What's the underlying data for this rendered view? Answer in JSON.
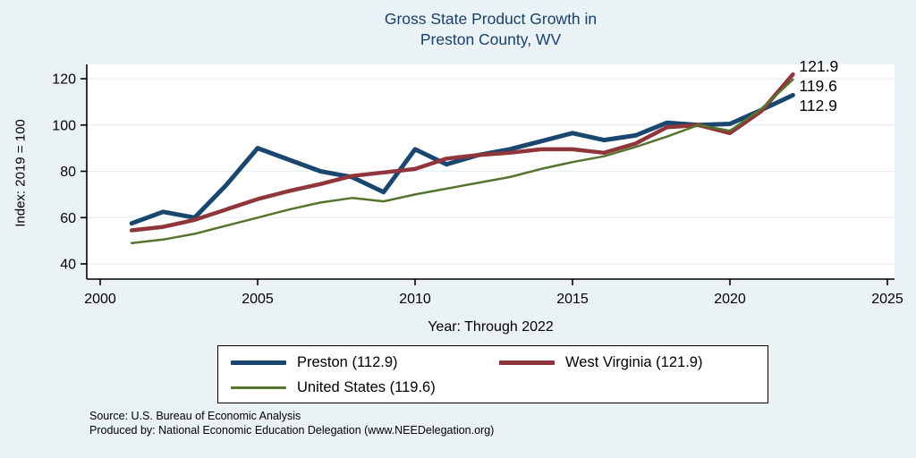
{
  "title": {
    "line1": "Gross State Product Growth in",
    "line2": "Preston County, WV"
  },
  "axes": {
    "y_label": "Index: 2019 = 100",
    "x_label": "Year: Through 2022"
  },
  "chart_data": {
    "type": "line",
    "x": [
      2001,
      2002,
      2003,
      2004,
      2005,
      2006,
      2007,
      2008,
      2009,
      2010,
      2011,
      2012,
      2013,
      2014,
      2015,
      2016,
      2017,
      2018,
      2019,
      2020,
      2021,
      2022
    ],
    "series": [
      {
        "name": "Preston",
        "color": "#1a476f",
        "width": 5,
        "values": [
          57.5,
          62.5,
          60,
          74,
          90,
          85,
          80,
          77.5,
          71,
          89.5,
          83,
          87,
          89.5,
          93,
          96.5,
          93.5,
          95.5,
          101,
          100,
          100.5,
          106.5,
          112.9
        ],
        "end_label": "112.9"
      },
      {
        "name": "West Virginia",
        "color": "#90353b",
        "width": 4.5,
        "values": [
          54.5,
          56,
          59,
          63.5,
          68,
          71.5,
          74.5,
          78,
          79.5,
          81,
          85.5,
          87,
          88,
          89.5,
          89.5,
          88,
          92,
          99,
          100,
          96.5,
          106,
          121.9
        ],
        "end_label": "121.9"
      },
      {
        "name": "United States",
        "color": "#55752f",
        "width": 2.5,
        "values": [
          49,
          50.5,
          53,
          56.5,
          60,
          63.5,
          66.5,
          68.5,
          67,
          70,
          72.5,
          75,
          77.5,
          81,
          84,
          86.5,
          90.5,
          95,
          100,
          97.5,
          107,
          119.6
        ],
        "end_label": "119.6"
      }
    ],
    "xlim": [
      2000,
      2025
    ],
    "x_ticks": [
      2000,
      2005,
      2010,
      2015,
      2020,
      2025
    ],
    "y_ticks": [
      40,
      60,
      80,
      100,
      120
    ],
    "grid": "faint-horizontal",
    "legend_position": "bottom",
    "title": "Gross State Product Growth in Preston County, WV",
    "xlabel": "Year: Through 2022",
    "ylabel": "Index: 2019 = 100"
  },
  "legend": {
    "items": [
      {
        "label": "Preston  (112.9)"
      },
      {
        "label": "West Virginia (121.9)"
      },
      {
        "label": "United States (119.6)"
      }
    ]
  },
  "footnotes": {
    "source": "Source: U.S. Bureau of Economic Analysis",
    "produced": "Produced by: National Economic Education Delegation (www.NEEDelegation.org)"
  },
  "colors": {
    "background": "#eaf2f6",
    "plot_background": "#ffffff",
    "title_text": "#17406b",
    "axis": "#000000",
    "gridline": "#e2edf4"
  }
}
